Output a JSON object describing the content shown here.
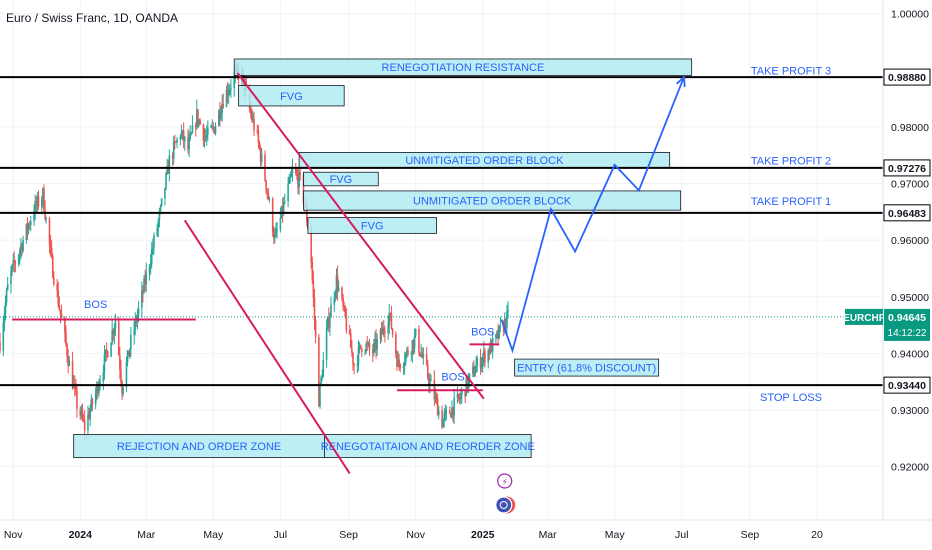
{
  "header": {
    "title": "Euro / Swiss Franc, 1D, OANDA"
  },
  "chart_data": {
    "type": "candlestick",
    "symbol": "EURCHF",
    "ylim": [
      0.915,
      1.001
    ],
    "xlim": [
      "2023-10-20",
      "2025-12-31"
    ],
    "y_ticks": [
      {
        "v": 1.0,
        "label": "1.00000"
      },
      {
        "v": 0.98,
        "label": "0.98000"
      },
      {
        "v": 0.97,
        "label": "0.97000"
      },
      {
        "v": 0.96,
        "label": "0.96000"
      },
      {
        "v": 0.95,
        "label": "0.95000"
      },
      {
        "v": 0.94,
        "label": "0.94000"
      },
      {
        "v": 0.93,
        "label": "0.93000"
      },
      {
        "v": 0.92,
        "label": "0.92000"
      }
    ],
    "x_ticks": [
      {
        "date": "2023-11-01",
        "label": "Nov",
        "bold": false
      },
      {
        "date": "2024-01-01",
        "label": "2024",
        "bold": true
      },
      {
        "date": "2024-03-01",
        "label": "Mar",
        "bold": false
      },
      {
        "date": "2024-05-01",
        "label": "May",
        "bold": false
      },
      {
        "date": "2024-07-01",
        "label": "Jul",
        "bold": false
      },
      {
        "date": "2024-09-01",
        "label": "Sep",
        "bold": false
      },
      {
        "date": "2024-11-01",
        "label": "Nov",
        "bold": false
      },
      {
        "date": "2025-01-01",
        "label": "2025",
        "bold": true
      },
      {
        "date": "2025-03-01",
        "label": "Mar",
        "bold": false
      },
      {
        "date": "2025-05-01",
        "label": "May",
        "bold": false
      },
      {
        "date": "2025-07-01",
        "label": "Jul",
        "bold": false
      },
      {
        "date": "2025-09-01",
        "label": "Sep",
        "bold": false
      },
      {
        "date": "2025-11-01",
        "label": "20",
        "bold": false
      }
    ],
    "price_path": [
      [
        "2023-10-20",
        0.942
      ],
      [
        "2023-10-28",
        0.953
      ],
      [
        "2023-11-10",
        0.96
      ],
      [
        "2023-11-20",
        0.9655
      ],
      [
        "2023-11-28",
        0.968
      ],
      [
        "2023-12-06",
        0.956
      ],
      [
        "2023-12-14",
        0.947
      ],
      [
        "2023-12-22",
        0.938
      ],
      [
        "2023-12-29",
        0.931
      ],
      [
        "2024-01-05",
        0.927
      ],
      [
        "2024-01-15",
        0.933
      ],
      [
        "2024-01-25",
        0.94
      ],
      [
        "2024-02-02",
        0.946
      ],
      [
        "2024-02-08",
        0.934
      ],
      [
        "2024-02-16",
        0.942
      ],
      [
        "2024-02-26",
        0.95
      ],
      [
        "2024-03-06",
        0.958
      ],
      [
        "2024-03-14",
        0.965
      ],
      [
        "2024-03-22",
        0.974
      ],
      [
        "2024-04-01",
        0.979
      ],
      [
        "2024-04-08",
        0.976
      ],
      [
        "2024-04-16",
        0.982
      ],
      [
        "2024-04-24",
        0.978
      ],
      [
        "2024-05-02",
        0.98
      ],
      [
        "2024-05-10",
        0.985
      ],
      [
        "2024-05-18",
        0.988
      ],
      [
        "2024-05-26",
        0.99
      ],
      [
        "2024-06-03",
        0.983
      ],
      [
        "2024-06-10",
        0.978
      ],
      [
        "2024-06-18",
        0.97
      ],
      [
        "2024-06-26",
        0.96
      ],
      [
        "2024-07-04",
        0.966
      ],
      [
        "2024-07-12",
        0.972
      ],
      [
        "2024-07-20",
        0.97
      ],
      [
        "2024-07-28",
        0.96
      ],
      [
        "2024-08-05",
        0.932
      ],
      [
        "2024-08-13",
        0.945
      ],
      [
        "2024-08-21",
        0.953
      ],
      [
        "2024-08-29",
        0.946
      ],
      [
        "2024-09-06",
        0.938
      ],
      [
        "2024-09-14",
        0.942
      ],
      [
        "2024-09-22",
        0.94
      ],
      [
        "2024-09-30",
        0.943
      ],
      [
        "2024-10-08",
        0.947
      ],
      [
        "2024-10-16",
        0.938
      ],
      [
        "2024-10-24",
        0.94
      ],
      [
        "2024-11-01",
        0.943
      ],
      [
        "2024-11-09",
        0.938
      ],
      [
        "2024-11-17",
        0.933
      ],
      [
        "2024-11-25",
        0.928
      ],
      [
        "2024-12-03",
        0.93
      ],
      [
        "2024-12-11",
        0.932
      ],
      [
        "2024-12-19",
        0.935
      ],
      [
        "2024-12-27",
        0.938
      ],
      [
        "2025-01-04",
        0.94
      ],
      [
        "2025-01-12",
        0.942
      ],
      [
        "2025-01-20",
        0.945
      ],
      [
        "2025-01-24",
        0.94645
      ]
    ],
    "horizontal_levels": [
      {
        "price": 0.9888,
        "label": "0.98880"
      },
      {
        "price": 0.97276,
        "label": "0.97276"
      },
      {
        "price": 0.96483,
        "label": "0.96483"
      },
      {
        "price": 0.9344,
        "label": "0.93440"
      }
    ],
    "current_price": {
      "symbol": "EURCHF",
      "value": "0.94645",
      "price": 0.94645,
      "countdown": "14:12:22",
      "color": "#089981"
    },
    "zones": [
      {
        "label": "RENEGOTIATION RESISTANCE",
        "x1": "2024-05-20",
        "x2": "2025-07-10",
        "y1": 0.992,
        "y2": 0.9891
      },
      {
        "label": "FVG",
        "x1": "2024-05-24",
        "x2": "2024-08-28",
        "y1": 0.9873,
        "y2": 0.9837
      },
      {
        "label": "UNMITIGATED ORDER BLOCK",
        "x1": "2024-07-18",
        "x2": "2025-06-20",
        "y1": 0.9755,
        "y2": 0.9728
      },
      {
        "label": "FVG",
        "x1": "2024-07-22",
        "x2": "2024-09-28",
        "y1": 0.972,
        "y2": 0.9696
      },
      {
        "label": "UNMITIGATED ORDER BLOCK",
        "x1": "2024-07-22",
        "x2": "2025-06-30",
        "y1": 0.9687,
        "y2": 0.9653
      },
      {
        "label": "FVG",
        "x1": "2024-07-26",
        "x2": "2024-11-20",
        "y1": 0.964,
        "y2": 0.9612
      },
      {
        "label": "ENTRY (61.8% DISCOUNT)",
        "x1": "2025-01-30",
        "x2": "2025-06-10",
        "y1": 0.939,
        "y2": 0.936
      },
      {
        "label": "REJECTION AND ORDER ZONE",
        "x1": "2023-12-26",
        "x2": "2024-08-10",
        "y1": 0.9257,
        "y2": 0.9216
      },
      {
        "label": "RENEGOTAITAION AND REORDER ZONE",
        "x1": "2024-08-10",
        "x2": "2025-02-14",
        "y1": 0.9257,
        "y2": 0.9216
      }
    ],
    "level_annotations": [
      {
        "label": "TAKE PROFIT 3",
        "price": 0.99
      },
      {
        "label": "TAKE PROFIT 2",
        "price": 0.9741
      },
      {
        "label": "TAKE PROFIT 1",
        "price": 0.9669
      },
      {
        "label": "STOP LOSS",
        "price": 0.9323
      }
    ],
    "bos_markers": [
      {
        "label": "BOS",
        "x1": "2023-10-31",
        "x2": "2024-04-15",
        "price": 0.946,
        "label_date": "2024-01-15",
        "label_price": 0.948
      },
      {
        "label": "BOS",
        "x1": "2024-10-15",
        "x2": "2025-01-01",
        "price": 0.9335,
        "label_date": "2024-12-05",
        "label_price": 0.9352
      },
      {
        "label": "BOS",
        "x1": "2024-12-20",
        "x2": "2025-01-16",
        "price": 0.9416,
        "label_date": "2025-01-01",
        "label_price": 0.9432
      }
    ],
    "trendlines": [
      {
        "from": [
          "2024-05-23",
          0.9895
        ],
        "to": [
          "2025-01-02",
          0.932
        ],
        "color": "#d81b60"
      },
      {
        "from": [
          "2024-04-05",
          0.9635
        ],
        "to": [
          "2024-09-02",
          0.9188
        ],
        "color": "#d81b60"
      }
    ],
    "projection_path": [
      [
        "2025-01-18",
        0.946
      ],
      [
        "2025-01-28",
        0.9405
      ],
      [
        "2025-03-04",
        0.9655
      ],
      [
        "2025-03-26",
        0.958
      ],
      [
        "2025-05-01",
        0.9733
      ],
      [
        "2025-05-23",
        0.9688
      ],
      [
        "2025-07-03",
        0.9888
      ]
    ]
  }
}
